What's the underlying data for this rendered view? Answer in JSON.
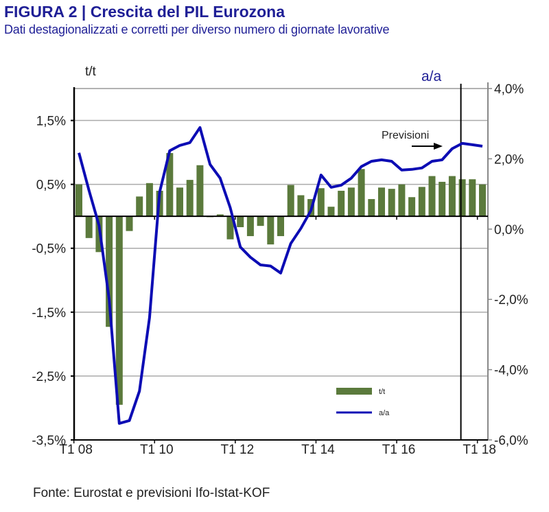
{
  "title": "FIGURA 2 | Crescita del PIL Eurozona",
  "subtitle": "Dati destagionalizzati e corretti per diverso numero di giornate lavorative",
  "source": "Fonte: Eurostat e previsioni Ifo-Istat-KOF",
  "colors": {
    "bars": "#5b7a3c",
    "line": "#0c0cb4",
    "title": "#1f1f96"
  },
  "chart_data": {
    "type": "bar+line",
    "left_axis_label": "t/t",
    "right_axis_label": "a/a",
    "left_ylim": [
      -3.5,
      2.0
    ],
    "right_ylim": [
      -6.0,
      4.0
    ],
    "left_ticks": [
      "1,5%",
      "0,5%",
      "-0,5%",
      "-1,5%",
      "-2,5%",
      "-3,5%"
    ],
    "left_tick_values": [
      1.5,
      0.5,
      -0.5,
      -1.5,
      -2.5,
      -3.5
    ],
    "right_ticks": [
      "4,0%",
      "2,0%",
      "0,0%",
      "-2,0%",
      "-4,0%",
      "-6,0%"
    ],
    "right_tick_values": [
      4,
      2,
      0,
      -2,
      -4,
      -6
    ],
    "x_ticks": [
      "T1 08",
      "T1 10",
      "T1 12",
      "T1 14",
      "T1 16",
      "T1 18"
    ],
    "x_tick_quarter_index": [
      0,
      8,
      16,
      24,
      32,
      40
    ],
    "x_range": "T1 08 – T1 18 (quarterly)",
    "grid": true,
    "annotation": "Previsioni",
    "forecast_divider_quarter_index": 38,
    "legend": {
      "placement": "bottom-right",
      "items": [
        "t/t",
        "a/a"
      ]
    },
    "series": [
      {
        "name": "t/t",
        "type": "bar",
        "axis": "left",
        "values": [
          0.5,
          -0.34,
          -0.56,
          -1.73,
          -2.95,
          -0.23,
          0.31,
          0.52,
          0.4,
          0.99,
          0.45,
          0.57,
          0.8,
          0.0,
          0.03,
          -0.36,
          -0.17,
          -0.31,
          -0.15,
          -0.44,
          -0.31,
          0.49,
          0.33,
          0.27,
          0.44,
          0.15,
          0.4,
          0.45,
          0.74,
          0.27,
          0.45,
          0.43,
          0.5,
          0.3,
          0.46,
          0.63,
          0.54,
          0.63,
          0.58,
          0.58,
          0.5
        ]
      },
      {
        "name": "a/a",
        "type": "line",
        "axis": "right",
        "values": [
          2.17,
          1.1,
          0.1,
          -2.0,
          -5.53,
          -5.45,
          -4.61,
          -2.52,
          1.05,
          2.23,
          2.38,
          2.46,
          2.89,
          1.84,
          1.45,
          0.61,
          -0.51,
          -0.8,
          -1.02,
          -1.05,
          -1.25,
          -0.41,
          0.02,
          0.53,
          1.54,
          1.19,
          1.25,
          1.45,
          1.78,
          1.93,
          1.97,
          1.93,
          1.68,
          1.7,
          1.74,
          1.93,
          1.97,
          2.29,
          2.44,
          2.4,
          2.36
        ]
      }
    ]
  }
}
